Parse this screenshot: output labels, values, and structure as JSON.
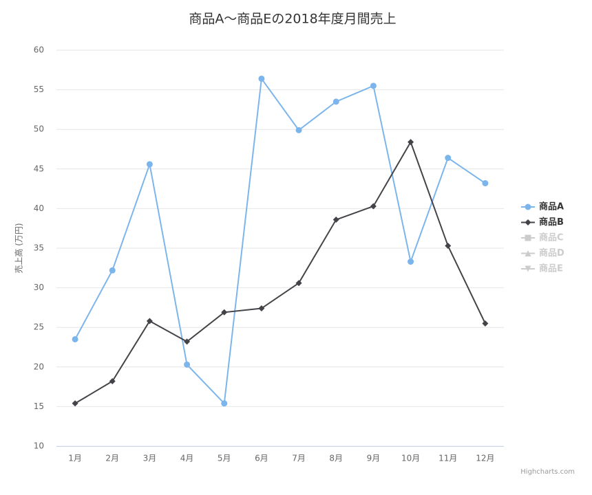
{
  "chart_data": {
    "type": "line",
    "title": "商品A～商品Eの2018年度月間売上",
    "y_axis_label": "売上高 (万円)",
    "categories": [
      "1月",
      "2月",
      "3月",
      "4月",
      "5月",
      "6月",
      "7月",
      "8月",
      "9月",
      "10月",
      "11月",
      "12月"
    ],
    "series": [
      {
        "name": "商品A",
        "color": "#7cb5ec",
        "marker": "circle",
        "visible": true,
        "values": [
          23.5,
          32.2,
          45.6,
          20.3,
          15.4,
          56.4,
          49.9,
          53.5,
          55.5,
          33.3,
          46.4,
          43.2
        ]
      },
      {
        "name": "商品B",
        "color": "#434348",
        "marker": "diamond",
        "visible": true,
        "values": [
          15.4,
          18.2,
          25.8,
          23.2,
          26.9,
          27.4,
          30.6,
          38.6,
          40.3,
          48.4,
          35.3,
          25.5
        ]
      },
      {
        "name": "商品C",
        "marker": "square",
        "visible": false
      },
      {
        "name": "商品D",
        "marker": "triangle",
        "visible": false
      },
      {
        "name": "商品E",
        "marker": "triangle-down",
        "visible": false
      }
    ],
    "ylim": [
      10,
      60
    ],
    "yticks": [
      10,
      15,
      20,
      25,
      30,
      35,
      40,
      45,
      50,
      55,
      60
    ],
    "grid": true,
    "legend": "right",
    "credits": "Highcharts.com"
  }
}
